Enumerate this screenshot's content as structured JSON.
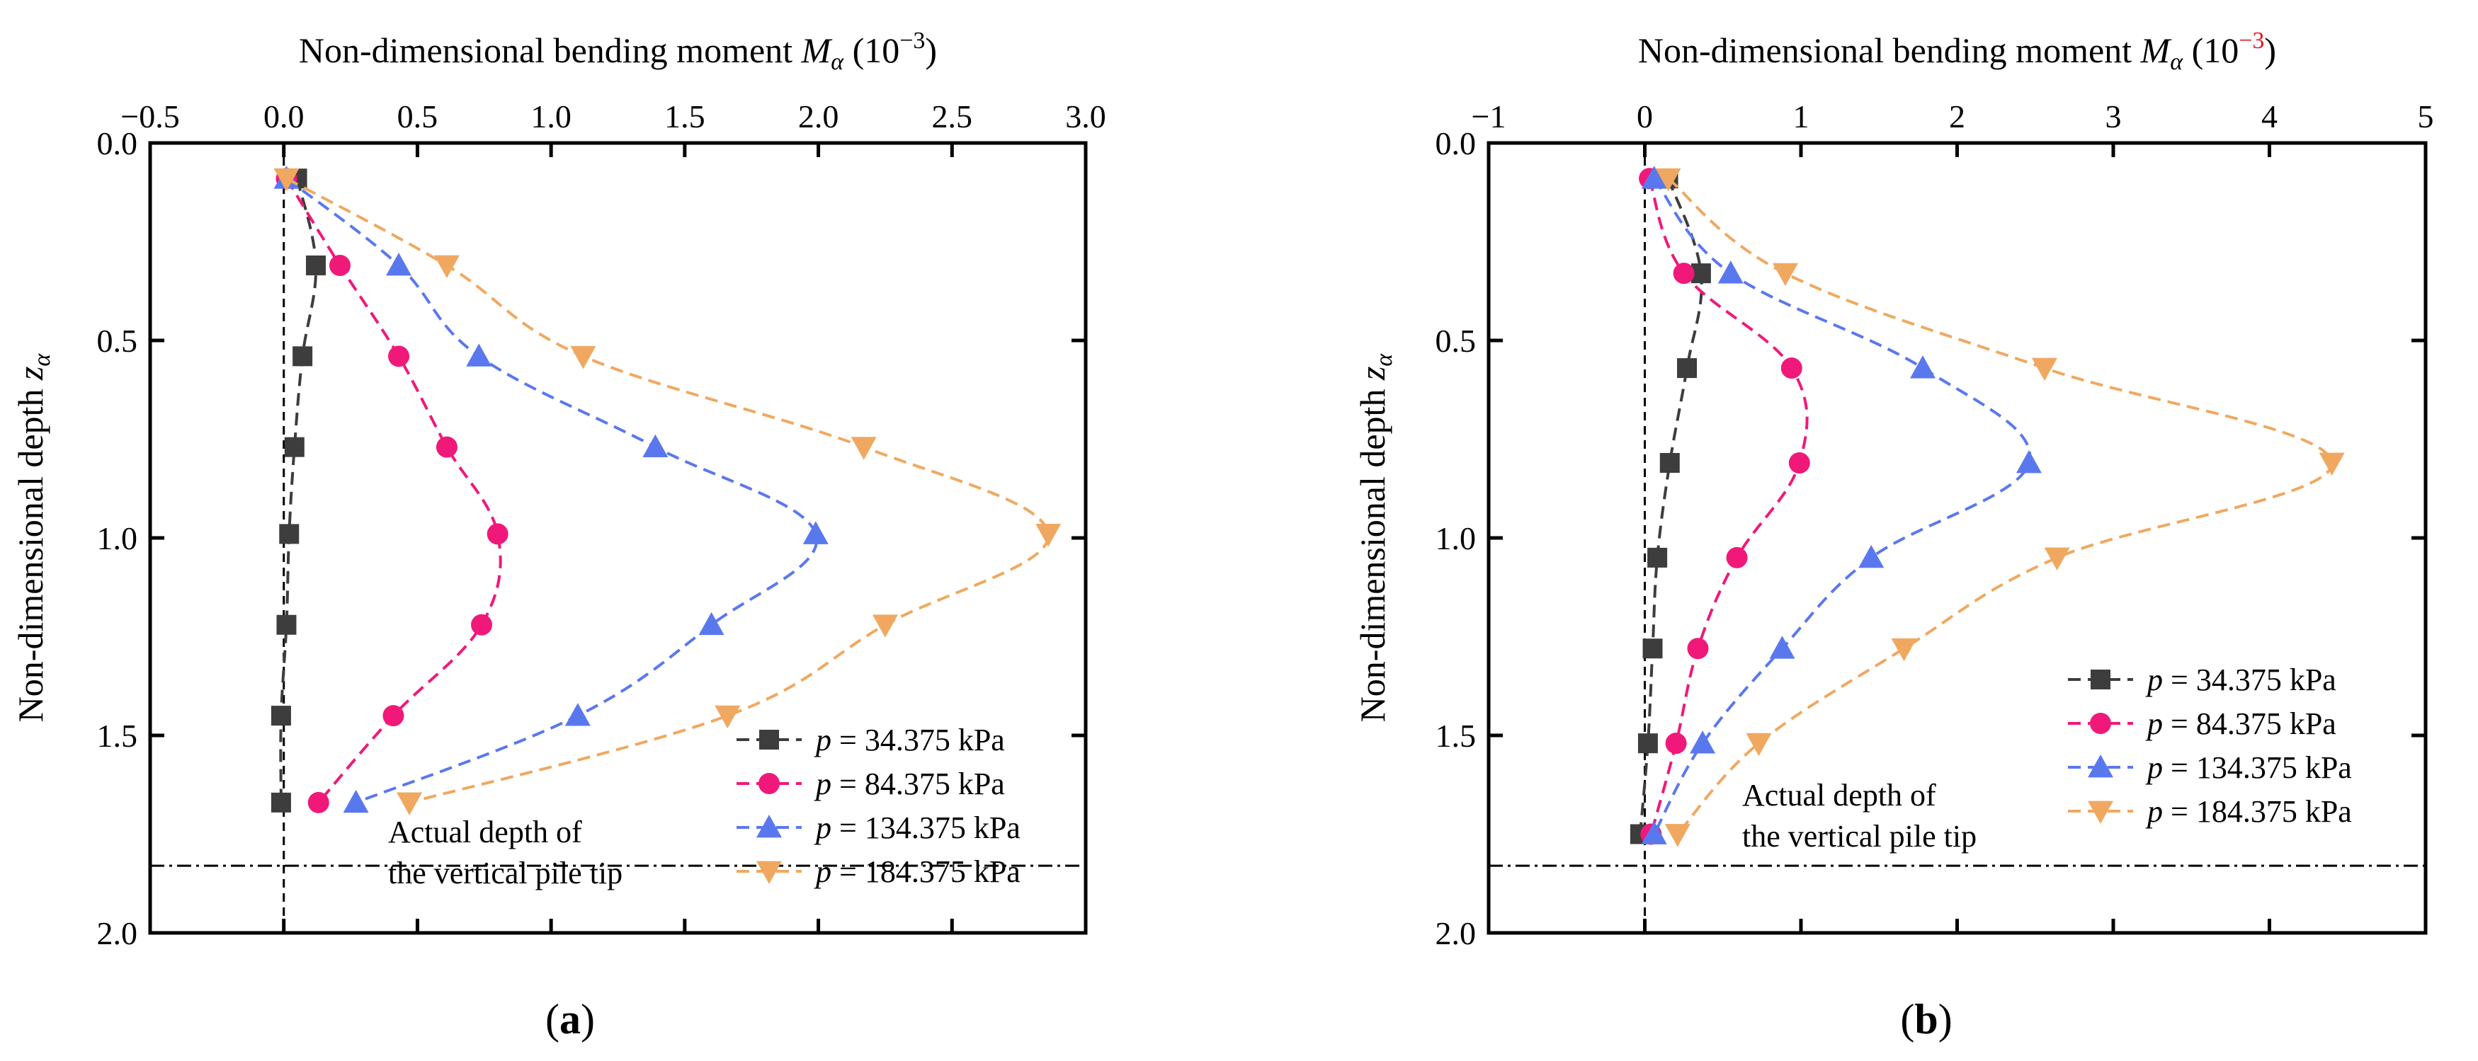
{
  "chart_data": [
    {
      "type": "line",
      "panel_label": "a",
      "x_title": "Non-dimensional bending moment M",
      "x_title_sub": "α",
      "x_title_unit_open": " (10",
      "x_title_exp": "−3",
      "x_title_unit_close": ")",
      "y_title": "Non-dimensional depth z",
      "y_title_sub": "α",
      "xlim": [
        -0.5,
        3.0
      ],
      "ylim": [
        0.0,
        2.0
      ],
      "y_inverted": true,
      "x_axis_position": "top",
      "xticks": [
        -0.5,
        0.0,
        0.5,
        1.0,
        1.5,
        2.0,
        2.5,
        3.0
      ],
      "xtick_labels": [
        "−0.5",
        "0.0",
        "0.5",
        "1.0",
        "1.5",
        "2.0",
        "2.5",
        "3.0"
      ],
      "yticks": [
        0.0,
        0.5,
        1.0,
        1.5,
        2.0
      ],
      "ytick_labels": [
        "0.0",
        "0.5",
        "1.0",
        "1.5",
        "2.0"
      ],
      "zero_line_x": 0.0,
      "pile_tip_depth": 1.83,
      "annotation_line1": "Actual depth of",
      "annotation_line2": "the vertical pile tip",
      "legend_position": "bottom-right",
      "series": [
        {
          "p_label": "p",
          "label_rest": " = 34.375 kPa",
          "color": "#3d3d3d",
          "marker": "square",
          "y": [
            0.09,
            0.31,
            0.54,
            0.77,
            0.99,
            1.22,
            1.45,
            1.67
          ],
          "x": [
            0.05,
            0.12,
            0.07,
            0.04,
            0.02,
            0.01,
            -0.01,
            -0.01
          ]
        },
        {
          "p_label": "p",
          "label_rest": " = 84.375 kPa",
          "color": "#f0197a",
          "marker": "circle",
          "y": [
            0.09,
            0.31,
            0.54,
            0.77,
            0.99,
            1.22,
            1.45,
            1.67
          ],
          "x": [
            0.01,
            0.21,
            0.43,
            0.61,
            0.8,
            0.74,
            0.41,
            0.13
          ]
        },
        {
          "p_label": "p",
          "label_rest": " = 134.375 kPa",
          "color": "#5a78ee",
          "marker": "triangle-up",
          "y": [
            0.09,
            0.31,
            0.54,
            0.77,
            0.99,
            1.22,
            1.45,
            1.67
          ],
          "x": [
            0.01,
            0.43,
            0.73,
            1.39,
            1.99,
            1.6,
            1.1,
            0.27
          ]
        },
        {
          "p_label": "p",
          "label_rest": " = 184.375 kPa",
          "color": "#f0a860",
          "marker": "triangle-down",
          "y": [
            0.09,
            0.31,
            0.54,
            0.77,
            0.99,
            1.22,
            1.45,
            1.67
          ],
          "x": [
            0.01,
            0.61,
            1.12,
            2.17,
            2.86,
            2.25,
            1.66,
            0.47
          ]
        }
      ]
    },
    {
      "type": "line",
      "panel_label": "b",
      "x_title": "Non-dimensional bending moment M",
      "x_title_sub": "α",
      "x_title_unit_open": " (10",
      "x_title_exp": "−3",
      "x_title_unit_close": ")",
      "y_title": "Non-dimensional depth z",
      "y_title_sub": "α",
      "xlim": [
        -1,
        5
      ],
      "ylim": [
        0.0,
        2.0
      ],
      "y_inverted": true,
      "x_axis_position": "top",
      "xticks": [
        -1,
        0,
        1,
        2,
        3,
        4,
        5
      ],
      "xtick_labels": [
        "−1",
        "0",
        "1",
        "2",
        "3",
        "4",
        "5"
      ],
      "yticks": [
        0.0,
        0.5,
        1.0,
        1.5,
        2.0
      ],
      "ytick_labels": [
        "0.0",
        "0.5",
        "1.0",
        "1.5",
        "2.0"
      ],
      "zero_line_x": 0.0,
      "pile_tip_depth": 1.83,
      "annotation_line1": "Actual depth of",
      "annotation_line2": "the vertical pile tip",
      "legend_position": "right",
      "series": [
        {
          "p_label": "p",
          "label_rest": " = 34.375 kPa",
          "color": "#3d3d3d",
          "marker": "square",
          "y": [
            0.09,
            0.33,
            0.57,
            0.81,
            1.05,
            1.28,
            1.52,
            1.75
          ],
          "x": [
            0.15,
            0.36,
            0.27,
            0.16,
            0.08,
            0.05,
            0.02,
            -0.03
          ]
        },
        {
          "p_label": "p",
          "label_rest": " = 84.375 kPa",
          "color": "#f0197a",
          "marker": "circle",
          "y": [
            0.09,
            0.33,
            0.57,
            0.81,
            1.05,
            1.28,
            1.52,
            1.75
          ],
          "x": [
            0.03,
            0.25,
            0.94,
            0.99,
            0.59,
            0.34,
            0.2,
            0.04
          ]
        },
        {
          "p_label": "p",
          "label_rest": " = 134.375 kPa",
          "color": "#5a78ee",
          "marker": "triangle-up",
          "y": [
            0.09,
            0.33,
            0.57,
            0.81,
            1.05,
            1.28,
            1.52,
            1.75
          ],
          "x": [
            0.06,
            0.55,
            1.78,
            2.46,
            1.45,
            0.88,
            0.37,
            0.06
          ]
        },
        {
          "p_label": "p",
          "label_rest": " = 184.375 kPa",
          "color": "#f0a860",
          "marker": "triangle-down",
          "y": [
            0.09,
            0.33,
            0.57,
            0.81,
            1.05,
            1.28,
            1.52,
            1.75
          ],
          "x": [
            0.15,
            0.9,
            2.56,
            4.4,
            2.64,
            1.66,
            0.73,
            0.21
          ]
        }
      ]
    }
  ],
  "colors": {
    "exponent_highlight_b": "#e8141e"
  }
}
